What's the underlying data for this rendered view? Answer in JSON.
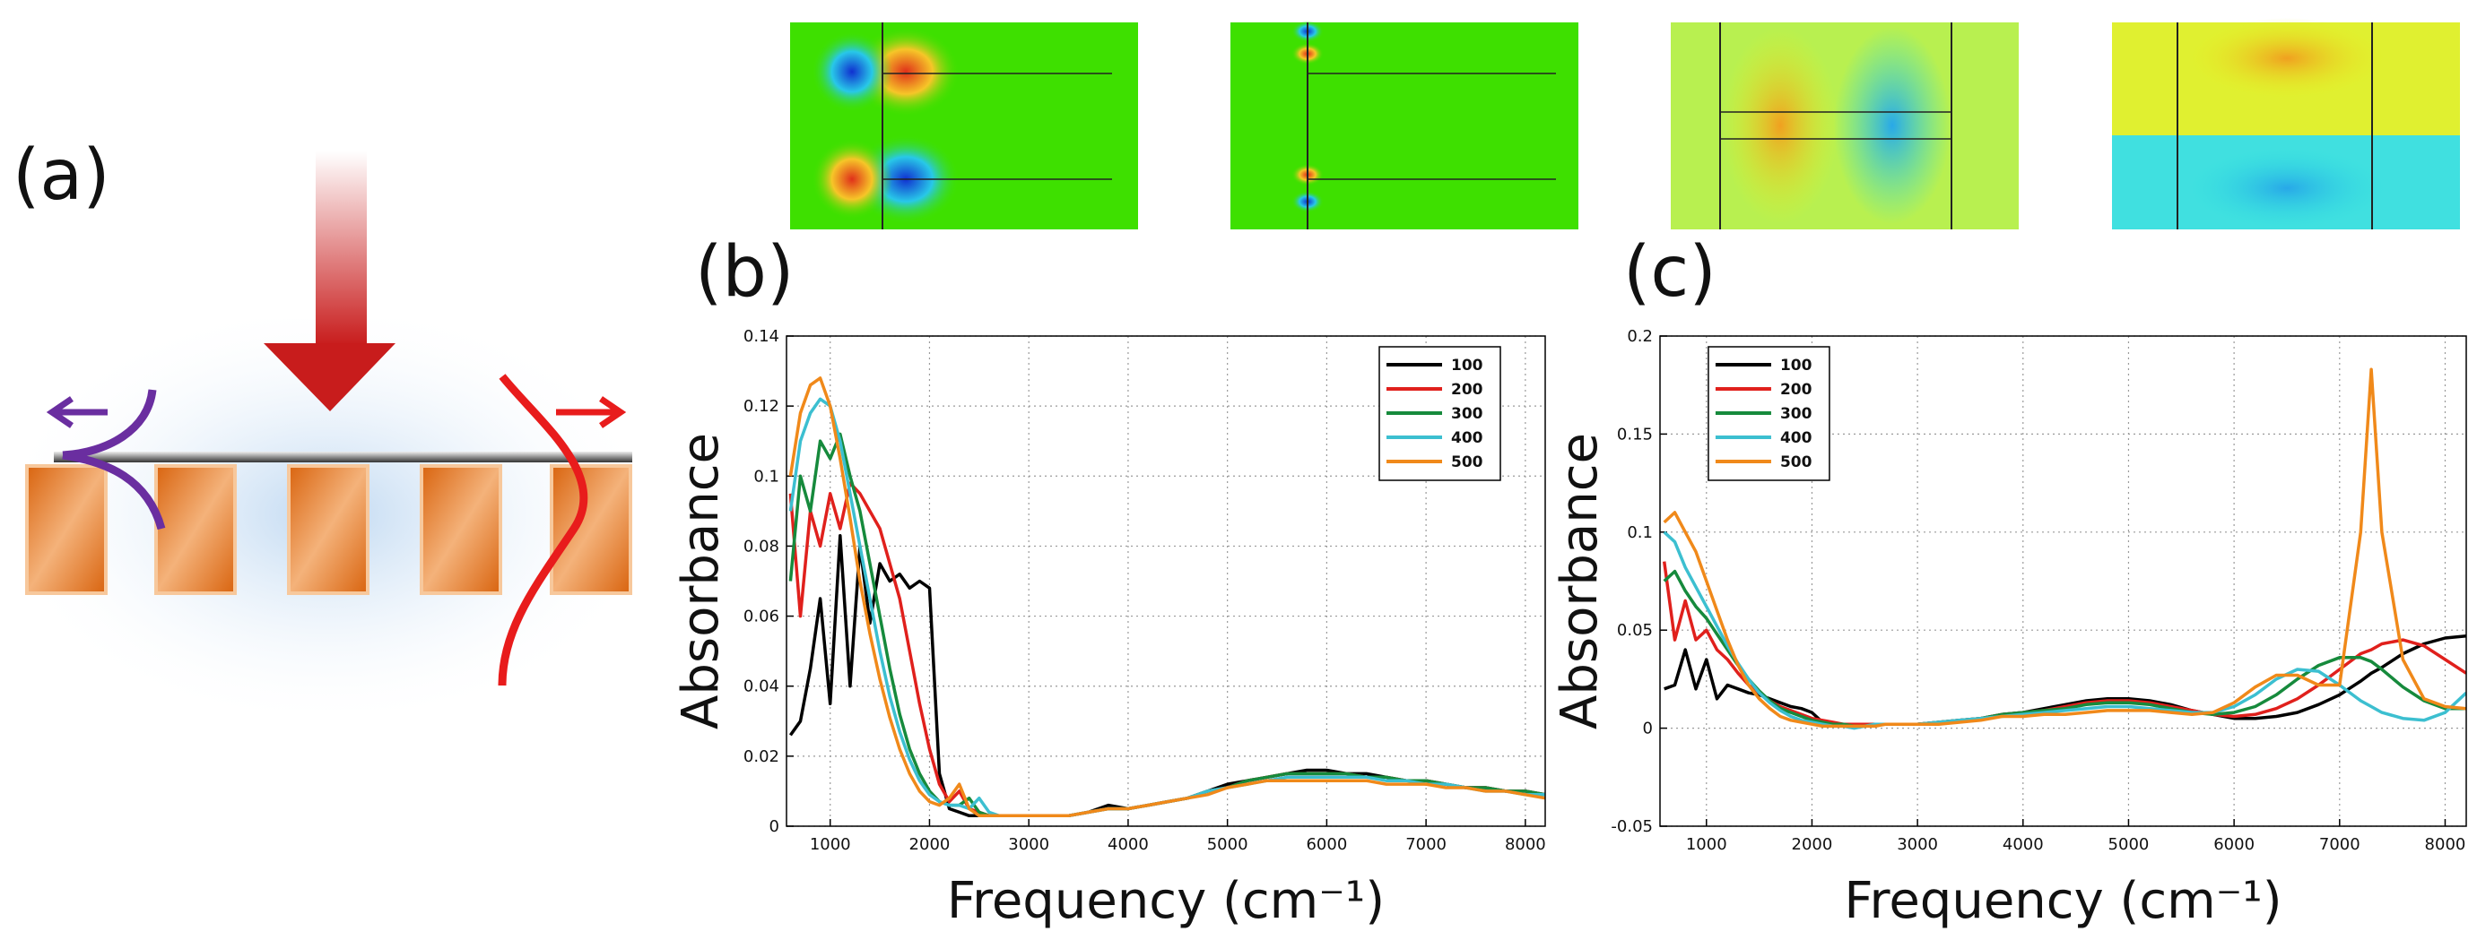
{
  "diagram": {
    "panel_label": "(a)"
  },
  "chart_data": [
    {
      "type": "line",
      "panel_label": "(b)",
      "xlabel": "Frequency (cm⁻¹)",
      "ylabel": "Absorbance",
      "x": [
        600,
        700,
        800,
        900,
        1000,
        1100,
        1200,
        1300,
        1400,
        1500,
        1600,
        1700,
        1800,
        1900,
        2000,
        2100,
        2200,
        2300,
        2400,
        2500,
        2600,
        2700,
        2800,
        2900,
        3000,
        3200,
        3400,
        3600,
        3800,
        4000,
        4200,
        4400,
        4600,
        4800,
        5000,
        5200,
        5400,
        5600,
        5800,
        6000,
        6200,
        6400,
        6600,
        6800,
        7000,
        7200,
        7400,
        7600,
        7800,
        8000,
        8200
      ],
      "xlim": [
        560,
        8200
      ],
      "xticks": [
        1000,
        2000,
        3000,
        4000,
        5000,
        6000,
        7000,
        8000
      ],
      "ylim": [
        0,
        0.14
      ],
      "yticks": [
        0,
        0.02,
        0.04,
        0.06,
        0.08,
        0.1,
        0.12,
        0.14
      ],
      "grid": true,
      "legend": "upper right",
      "series": [
        {
          "name": "100",
          "color": "#000000",
          "values": [
            0.026,
            0.03,
            0.045,
            0.065,
            0.035,
            0.083,
            0.04,
            0.08,
            0.058,
            0.075,
            0.07,
            0.072,
            0.068,
            0.07,
            0.068,
            0.015,
            0.005,
            0.004,
            0.003,
            0.003,
            0.003,
            0.003,
            0.003,
            0.003,
            0.003,
            0.003,
            0.003,
            0.004,
            0.006,
            0.005,
            0.006,
            0.007,
            0.008,
            0.01,
            0.012,
            0.013,
            0.014,
            0.015,
            0.016,
            0.016,
            0.015,
            0.015,
            0.014,
            0.013,
            0.013,
            0.012,
            0.011,
            0.011,
            0.01,
            0.01,
            0.009
          ]
        },
        {
          "name": "200",
          "color": "#e0201c",
          "values": [
            0.095,
            0.06,
            0.09,
            0.08,
            0.095,
            0.085,
            0.098,
            0.095,
            0.09,
            0.085,
            0.075,
            0.065,
            0.05,
            0.035,
            0.022,
            0.012,
            0.007,
            0.01,
            0.005,
            0.004,
            0.003,
            0.003,
            0.003,
            0.003,
            0.003,
            0.003,
            0.003,
            0.004,
            0.005,
            0.005,
            0.006,
            0.007,
            0.008,
            0.01,
            0.011,
            0.013,
            0.014,
            0.015,
            0.015,
            0.015,
            0.015,
            0.014,
            0.014,
            0.013,
            0.013,
            0.012,
            0.011,
            0.011,
            0.01,
            0.01,
            0.009
          ]
        },
        {
          "name": "300",
          "color": "#168a3c",
          "values": [
            0.07,
            0.1,
            0.09,
            0.11,
            0.105,
            0.112,
            0.1,
            0.09,
            0.075,
            0.06,
            0.045,
            0.032,
            0.022,
            0.015,
            0.01,
            0.007,
            0.006,
            0.006,
            0.008,
            0.004,
            0.003,
            0.003,
            0.003,
            0.003,
            0.003,
            0.003,
            0.003,
            0.004,
            0.005,
            0.005,
            0.006,
            0.007,
            0.008,
            0.01,
            0.011,
            0.013,
            0.014,
            0.015,
            0.015,
            0.015,
            0.015,
            0.014,
            0.014,
            0.013,
            0.013,
            0.012,
            0.011,
            0.011,
            0.01,
            0.01,
            0.009
          ]
        },
        {
          "name": "400",
          "color": "#3cbfd0",
          "values": [
            0.09,
            0.11,
            0.118,
            0.122,
            0.12,
            0.11,
            0.095,
            0.08,
            0.065,
            0.05,
            0.037,
            0.027,
            0.019,
            0.013,
            0.009,
            0.007,
            0.006,
            0.006,
            0.005,
            0.008,
            0.004,
            0.003,
            0.003,
            0.003,
            0.003,
            0.003,
            0.003,
            0.004,
            0.005,
            0.005,
            0.006,
            0.007,
            0.008,
            0.01,
            0.011,
            0.012,
            0.013,
            0.014,
            0.014,
            0.014,
            0.014,
            0.014,
            0.013,
            0.013,
            0.012,
            0.012,
            0.011,
            0.01,
            0.01,
            0.009,
            0.009
          ]
        },
        {
          "name": "500",
          "color": "#f0891a",
          "values": [
            0.1,
            0.118,
            0.126,
            0.128,
            0.12,
            0.105,
            0.088,
            0.07,
            0.055,
            0.042,
            0.031,
            0.022,
            0.015,
            0.01,
            0.007,
            0.006,
            0.008,
            0.012,
            0.005,
            0.003,
            0.003,
            0.003,
            0.003,
            0.003,
            0.003,
            0.003,
            0.003,
            0.004,
            0.005,
            0.005,
            0.006,
            0.007,
            0.008,
            0.009,
            0.011,
            0.012,
            0.013,
            0.013,
            0.013,
            0.013,
            0.013,
            0.013,
            0.012,
            0.012,
            0.012,
            0.011,
            0.011,
            0.01,
            0.01,
            0.009,
            0.008
          ]
        }
      ]
    },
    {
      "type": "line",
      "panel_label": "(c)",
      "xlabel": "Frequency (cm⁻¹)",
      "ylabel": "Absorbance",
      "x": [
        600,
        700,
        800,
        900,
        1000,
        1100,
        1200,
        1300,
        1400,
        1500,
        1600,
        1700,
        1800,
        1900,
        2000,
        2100,
        2200,
        2300,
        2400,
        2500,
        2600,
        2700,
        2800,
        2900,
        3000,
        3200,
        3400,
        3600,
        3800,
        4000,
        4200,
        4400,
        4600,
        4800,
        5000,
        5200,
        5400,
        5600,
        5800,
        6000,
        6200,
        6400,
        6600,
        6800,
        7000,
        7200,
        7300,
        7400,
        7600,
        7800,
        8000,
        8200
      ],
      "xlim": [
        560,
        8200
      ],
      "xticks": [
        1000,
        2000,
        3000,
        4000,
        5000,
        6000,
        7000,
        8000
      ],
      "ylim": [
        -0.05,
        0.2
      ],
      "yticks": [
        -0.05,
        0,
        0.05,
        0.1,
        0.15,
        0.2
      ],
      "grid": true,
      "legend": "upper center",
      "series": [
        {
          "name": "100",
          "color": "#000000",
          "values": [
            0.02,
            0.022,
            0.04,
            0.02,
            0.035,
            0.015,
            0.022,
            0.02,
            0.018,
            0.017,
            0.015,
            0.013,
            0.011,
            0.01,
            0.008,
            0.003,
            0.002,
            0.002,
            0.002,
            0.002,
            0.002,
            0.002,
            0.002,
            0.002,
            0.002,
            0.003,
            0.004,
            0.005,
            0.007,
            0.008,
            0.01,
            0.012,
            0.014,
            0.015,
            0.015,
            0.014,
            0.012,
            0.009,
            0.007,
            0.005,
            0.005,
            0.006,
            0.008,
            0.012,
            0.017,
            0.024,
            0.028,
            0.031,
            0.038,
            0.043,
            0.046,
            0.047
          ]
        },
        {
          "name": "200",
          "color": "#e0201c",
          "values": [
            0.085,
            0.045,
            0.065,
            0.045,
            0.05,
            0.04,
            0.035,
            0.028,
            0.022,
            0.018,
            0.014,
            0.011,
            0.009,
            0.007,
            0.005,
            0.004,
            0.003,
            0.002,
            0.002,
            0.002,
            0.002,
            0.002,
            0.002,
            0.002,
            0.002,
            0.003,
            0.004,
            0.005,
            0.007,
            0.008,
            0.009,
            0.011,
            0.013,
            0.014,
            0.014,
            0.013,
            0.011,
            0.009,
            0.007,
            0.006,
            0.007,
            0.01,
            0.015,
            0.022,
            0.03,
            0.038,
            0.04,
            0.043,
            0.045,
            0.042,
            0.035,
            0.028
          ]
        },
        {
          "name": "300",
          "color": "#168a3c",
          "values": [
            0.075,
            0.08,
            0.07,
            0.062,
            0.056,
            0.048,
            0.04,
            0.032,
            0.025,
            0.019,
            0.014,
            0.01,
            0.008,
            0.006,
            0.004,
            0.003,
            0.002,
            0.002,
            0.001,
            0.001,
            0.002,
            0.002,
            0.002,
            0.002,
            0.002,
            0.003,
            0.004,
            0.005,
            0.007,
            0.008,
            0.009,
            0.01,
            0.012,
            0.013,
            0.013,
            0.012,
            0.01,
            0.008,
            0.007,
            0.008,
            0.011,
            0.017,
            0.025,
            0.032,
            0.036,
            0.036,
            0.034,
            0.03,
            0.021,
            0.014,
            0.01,
            0.01
          ]
        },
        {
          "name": "400",
          "color": "#3cbfd0",
          "values": [
            0.1,
            0.095,
            0.082,
            0.072,
            0.062,
            0.052,
            0.042,
            0.033,
            0.025,
            0.018,
            0.013,
            0.009,
            0.006,
            0.004,
            0.003,
            0.002,
            0.001,
            0.001,
            0,
            0.001,
            0.002,
            0.002,
            0.002,
            0.002,
            0.002,
            0.003,
            0.004,
            0.005,
            0.006,
            0.007,
            0.008,
            0.009,
            0.01,
            0.011,
            0.011,
            0.01,
            0.009,
            0.008,
            0.008,
            0.011,
            0.017,
            0.025,
            0.03,
            0.029,
            0.022,
            0.014,
            0.011,
            0.008,
            0.005,
            0.004,
            0.008,
            0.018
          ]
        },
        {
          "name": "500",
          "color": "#f0891a",
          "values": [
            0.105,
            0.11,
            0.1,
            0.09,
            0.075,
            0.06,
            0.045,
            0.032,
            0.022,
            0.015,
            0.01,
            0.006,
            0.004,
            0.003,
            0.002,
            0.001,
            0.001,
            0.001,
            0.001,
            0.001,
            0.001,
            0.002,
            0.002,
            0.002,
            0.002,
            0.002,
            0.003,
            0.004,
            0.006,
            0.006,
            0.007,
            0.007,
            0.008,
            0.009,
            0.009,
            0.009,
            0.008,
            0.007,
            0.008,
            0.013,
            0.021,
            0.027,
            0.027,
            0.022,
            0.022,
            0.1,
            0.183,
            0.1,
            0.035,
            0.015,
            0.011,
            0.01
          ]
        }
      ]
    }
  ]
}
